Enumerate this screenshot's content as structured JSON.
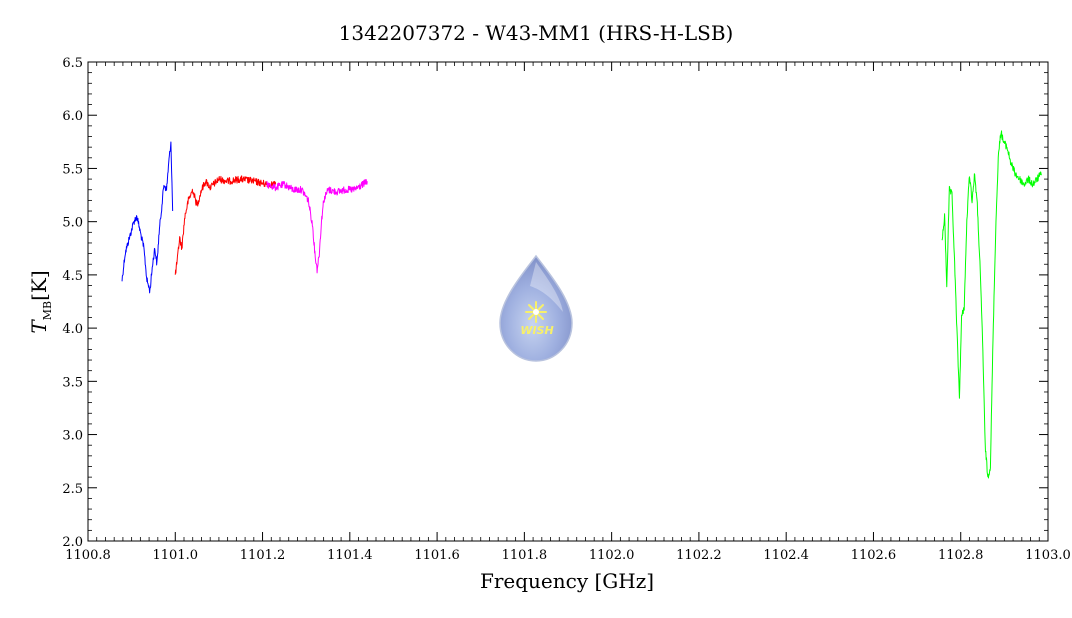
{
  "chart_data": {
    "type": "line",
    "title": "1342207372 - W43-MM1 (HRS-H-LSB)",
    "xlabel": "Frequency [GHz]",
    "ylabel": "T",
    "ylabel_sub": "MB",
    "ylabel_unit": "[K]",
    "xlim": [
      1100.8,
      1103.0
    ],
    "ylim": [
      2.0,
      6.5
    ],
    "xticks": [
      1100.8,
      1101.0,
      1101.2,
      1101.4,
      1101.6,
      1101.8,
      1102.0,
      1102.2,
      1102.4,
      1102.6,
      1102.8,
      1103.0
    ],
    "xtick_labels": [
      "1100.8",
      "1101.0",
      "1101.2",
      "1101.4",
      "1101.6",
      "1101.8",
      "1102.0",
      "1102.2",
      "1102.4",
      "1102.6",
      "1102.8",
      "1103.0"
    ],
    "yticks": [
      2.0,
      2.5,
      3.0,
      3.5,
      4.0,
      4.5,
      5.0,
      5.5,
      6.0,
      6.5
    ],
    "ytick_labels": [
      "2.0",
      "2.5",
      "3.0",
      "3.5",
      "4.0",
      "4.5",
      "5.0",
      "5.5",
      "6.0",
      "6.5"
    ],
    "grid": false,
    "logo_text": "WISH",
    "series": [
      {
        "color": "#0000ff",
        "x": [
          1100.878,
          1100.885,
          1100.895,
          1100.905,
          1100.912,
          1100.92,
          1100.928,
          1100.935,
          1100.942,
          1100.948,
          1100.953,
          1100.958,
          1100.963,
          1100.968,
          1100.974,
          1100.98,
          1100.985,
          1100.99,
          1100.994
        ],
        "y": [
          4.45,
          4.7,
          4.85,
          5.0,
          5.05,
          4.9,
          4.75,
          4.45,
          4.35,
          4.6,
          4.75,
          4.6,
          4.9,
          5.1,
          5.35,
          5.3,
          5.55,
          5.75,
          5.1
        ]
      },
      {
        "color": "#ff0000",
        "x": [
          1101.0,
          1101.005,
          1101.01,
          1101.015,
          1101.022,
          1101.03,
          1101.04,
          1101.05,
          1101.06,
          1101.07,
          1101.08,
          1101.1,
          1101.12,
          1101.15,
          1101.18,
          1101.21,
          1101.23
        ],
        "y": [
          4.5,
          4.65,
          4.85,
          4.75,
          5.05,
          5.2,
          5.3,
          5.15,
          5.3,
          5.38,
          5.32,
          5.4,
          5.38,
          5.4,
          5.38,
          5.35,
          5.35
        ]
      },
      {
        "color": "#ff00ff",
        "x": [
          1101.21,
          1101.23,
          1101.25,
          1101.27,
          1101.29,
          1101.305,
          1101.315,
          1101.32,
          1101.325,
          1101.33,
          1101.335,
          1101.34,
          1101.35,
          1101.37,
          1101.39,
          1101.41,
          1101.43,
          1101.44
        ],
        "y": [
          5.35,
          5.32,
          5.35,
          5.3,
          5.3,
          5.2,
          4.95,
          4.7,
          4.55,
          4.7,
          5.0,
          5.2,
          5.3,
          5.28,
          5.3,
          5.3,
          5.35,
          5.38
        ]
      },
      {
        "color": "#00ff00",
        "x": [
          1102.757,
          1102.763,
          1102.768,
          1102.774,
          1102.78,
          1102.786,
          1102.792,
          1102.797,
          1102.802,
          1102.808,
          1102.814,
          1102.82,
          1102.826,
          1102.832,
          1102.838,
          1102.844,
          1102.85,
          1102.856,
          1102.862,
          1102.868,
          1102.874,
          1102.88,
          1102.886,
          1102.892,
          1102.898,
          1102.906,
          1102.915,
          1102.925,
          1102.935,
          1102.945,
          1102.955,
          1102.965,
          1102.975,
          1102.985
        ],
        "y": [
          4.8,
          5.05,
          4.4,
          5.3,
          5.25,
          4.6,
          3.9,
          3.35,
          4.1,
          4.2,
          5.0,
          5.45,
          5.2,
          5.45,
          5.15,
          4.6,
          3.9,
          2.9,
          2.6,
          2.7,
          3.9,
          4.9,
          5.6,
          5.85,
          5.75,
          5.7,
          5.55,
          5.45,
          5.4,
          5.35,
          5.4,
          5.35,
          5.4,
          5.45
        ]
      }
    ]
  }
}
